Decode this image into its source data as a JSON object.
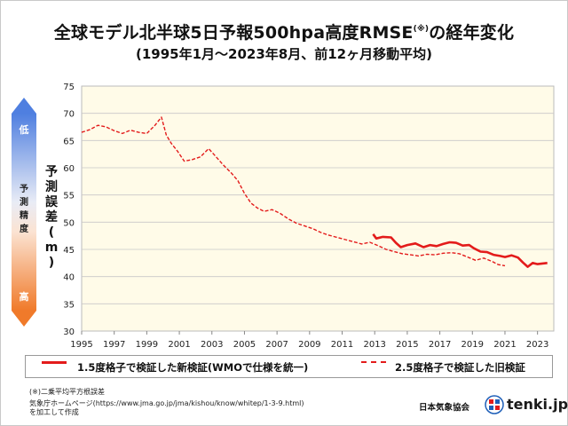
{
  "title": {
    "main": "全球モデル北半球5日予報500hpa高度RMSE",
    "note_mark": "(※)",
    "suffix": "の経年変化"
  },
  "subtitle": "(1995年1月～2023年8月、前12ヶ月移動平均)",
  "side_scale": {
    "top_label": "低",
    "middle_label": "予測精度",
    "bottom_label": "高"
  },
  "ylabel": "予測誤差(m)",
  "legend": {
    "new_label": "1.5度格子で検証した新検証(WMOで仕様を統一)",
    "old_label": "2.5度格子で検証した旧検証"
  },
  "footnotes": {
    "rmse_note": "(※)二乗平均平方根誤差",
    "source_line1": "気象庁ホームページ(https://www.jma.go.jp/jma/kishou/know/whitep/1-3-9.html)",
    "source_line2": "を加工して作成"
  },
  "org_name": "日本気象協会",
  "logo_text": "tenki.jp",
  "colors": {
    "series": "#e31b1b",
    "plot_background": "#fffbe8",
    "gradient_top": "#4f7fe0",
    "gradient_bottom": "#f07a2a"
  },
  "chart_data": {
    "type": "line",
    "title": "全球モデル北半球5日予報500hpa高度RMSE(※)の経年変化",
    "xlabel": "",
    "ylabel": "予測誤差(m)",
    "xlim": [
      1995,
      2024
    ],
    "ylim": [
      30,
      75
    ],
    "x_ticks": [
      1995,
      1997,
      1999,
      2001,
      2003,
      2005,
      2007,
      2009,
      2011,
      2013,
      2015,
      2017,
      2019,
      2021,
      2023
    ],
    "y_ticks": [
      30,
      35,
      40,
      45,
      50,
      55,
      60,
      65,
      70,
      75
    ],
    "grid": "horizontal",
    "legend_position": "bottom",
    "series": [
      {
        "name": "1.5度格子で検証した新検証(WMOで仕様を統一)",
        "style": "solid",
        "x": [
          2012.9,
          2013.1,
          2013.5,
          2014.0,
          2014.3,
          2014.6,
          2015.0,
          2015.5,
          2016.0,
          2016.4,
          2016.8,
          2017.2,
          2017.6,
          2018.0,
          2018.4,
          2018.8,
          2019.1,
          2019.5,
          2019.9,
          2020.3,
          2020.7,
          2021.0,
          2021.4,
          2021.8,
          2022.1,
          2022.4,
          2022.7,
          2023.0,
          2023.3,
          2023.6
        ],
        "y": [
          47.8,
          47.0,
          47.3,
          47.2,
          46.2,
          45.4,
          45.8,
          46.1,
          45.4,
          45.8,
          45.6,
          46.0,
          46.3,
          46.2,
          45.7,
          45.8,
          45.2,
          44.6,
          44.5,
          44.0,
          43.8,
          43.6,
          43.9,
          43.5,
          42.6,
          41.8,
          42.5,
          42.3,
          42.4,
          42.5
        ]
      },
      {
        "name": "2.5度格子で検証した旧検証",
        "style": "dashed",
        "x": [
          1995.0,
          1995.5,
          1996.0,
          1996.5,
          1997.0,
          1997.5,
          1998.0,
          1998.5,
          1999.0,
          1999.5,
          1999.9,
          2000.2,
          2000.5,
          2000.9,
          2001.3,
          2001.8,
          2002.3,
          2002.8,
          2003.2,
          2003.7,
          2004.2,
          2004.6,
          2005.0,
          2005.4,
          2005.8,
          2006.2,
          2006.7,
          2007.2,
          2007.7,
          2008.2,
          2008.7,
          2009.2,
          2009.7,
          2010.2,
          2010.7,
          2011.2,
          2011.7,
          2012.2,
          2012.7,
          2013.2,
          2013.7,
          2014.2,
          2014.7,
          2015.2,
          2015.7,
          2016.2,
          2016.7,
          2017.2,
          2017.7,
          2018.2,
          2018.7,
          2019.2,
          2019.7,
          2020.2,
          2020.6,
          2021.0
        ],
        "y": [
          66.5,
          67.0,
          67.8,
          67.5,
          66.8,
          66.3,
          66.9,
          66.5,
          66.3,
          67.8,
          69.3,
          66.0,
          64.5,
          63.0,
          61.2,
          61.5,
          62.0,
          63.5,
          62.2,
          60.5,
          59.0,
          57.6,
          55.3,
          53.5,
          52.6,
          52.0,
          52.3,
          51.6,
          50.6,
          49.8,
          49.3,
          48.8,
          48.1,
          47.6,
          47.2,
          46.8,
          46.4,
          46.0,
          46.3,
          45.7,
          45.0,
          44.6,
          44.2,
          44.0,
          43.8,
          44.1,
          44.0,
          44.3,
          44.4,
          44.2,
          43.6,
          43.0,
          43.4,
          42.8,
          42.2,
          42.0
        ]
      }
    ]
  }
}
